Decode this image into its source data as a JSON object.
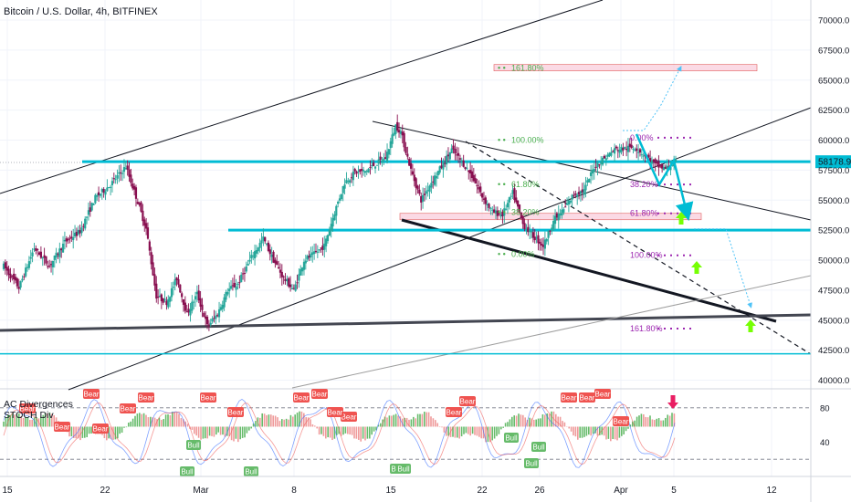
{
  "header": {
    "title": "Bitcoin / U.S. Dollar, 4h, BITFINEX"
  },
  "indicator": {
    "line1": "AC Divergences",
    "line2": "STOCH Div"
  },
  "colors": {
    "bull_candle": "#26a69a",
    "bear_candle": "#880e4f",
    "cyan": "#00bcd4",
    "pink_zone": "#f8bbd0",
    "arrow_green": "#76ff03",
    "arrow_red": "#e91e63",
    "fib_green": "#4caf50",
    "fib_purple": "#9c27b0",
    "ac_up": "#66bb6a",
    "ac_down": "#ef9a9a",
    "bear_label": "#ef5350",
    "bull_label": "#66bb6a"
  },
  "chart_data": {
    "type": "candlestick",
    "symbol": "BTCUSD",
    "timeframe": "4h",
    "price_axis": {
      "ticks": [
        "70000.0",
        "67500.0",
        "65000.0",
        "62500.0",
        "60000.0",
        "57500.0",
        "55000.0",
        "52500.0",
        "50000.0",
        "47500.0",
        "45000.0",
        "42500.0",
        "40000.0"
      ],
      "range": [
        39000,
        71500
      ]
    },
    "last_price": "58178.9",
    "time_axis": {
      "ticks": [
        "15",
        "22",
        "Mar",
        "8",
        "15",
        "22",
        "26",
        "Apr",
        "5",
        "12"
      ]
    },
    "price_path": [
      [
        0,
        49500
      ],
      [
        3,
        47700
      ],
      [
        6,
        51000
      ],
      [
        9,
        49500
      ],
      [
        12,
        51500
      ],
      [
        15,
        52400
      ],
      [
        18,
        55200
      ],
      [
        21,
        56300
      ],
      [
        24,
        57800
      ],
      [
        26,
        55300
      ],
      [
        28,
        52600
      ],
      [
        30,
        47000
      ],
      [
        32,
        46500
      ],
      [
        34,
        48500
      ],
      [
        36,
        45500
      ],
      [
        38,
        47200
      ],
      [
        40,
        44500
      ],
      [
        42,
        45500
      ],
      [
        44,
        47500
      ],
      [
        46,
        48000
      ],
      [
        49,
        50500
      ],
      [
        51,
        51800
      ],
      [
        53,
        50000
      ],
      [
        55,
        48500
      ],
      [
        57,
        47500
      ],
      [
        59,
        50000
      ],
      [
        61,
        50500
      ],
      [
        63,
        51200
      ],
      [
        65,
        54000
      ],
      [
        67,
        56500
      ],
      [
        69,
        57300
      ],
      [
        71,
        57400
      ],
      [
        73,
        58000
      ],
      [
        75,
        58500
      ],
      [
        77,
        61200
      ],
      [
        78,
        60700
      ],
      [
        80,
        57500
      ],
      [
        82,
        55000
      ],
      [
        84,
        56500
      ],
      [
        86,
        57800
      ],
      [
        88,
        59200
      ],
      [
        90,
        58200
      ],
      [
        92,
        57000
      ],
      [
        94,
        55300
      ],
      [
        96,
        54000
      ],
      [
        98,
        53800
      ],
      [
        100,
        55600
      ],
      [
        102,
        53000
      ],
      [
        104,
        52000
      ],
      [
        106,
        51200
      ],
      [
        108,
        53300
      ],
      [
        110,
        54200
      ],
      [
        112,
        55500
      ],
      [
        114,
        55800
      ],
      [
        116,
        57800
      ],
      [
        118,
        58500
      ],
      [
        120,
        59200
      ],
      [
        122,
        59300
      ],
      [
        124,
        59400
      ],
      [
        126,
        58700
      ],
      [
        128,
        57900
      ],
      [
        130,
        57600
      ],
      [
        132,
        58200
      ]
    ],
    "fib_left": [
      {
        "label": "161.80%",
        "price": 66000
      },
      {
        "label": "100.00%",
        "price": 60000
      },
      {
        "label": "61.80%",
        "price": 56300
      },
      {
        "label": "38.20%",
        "price": 54000
      },
      {
        "label": "0.00%",
        "price": 50500
      }
    ],
    "fib_right": [
      {
        "label": "0.00%",
        "price": 60200
      },
      {
        "label": "38.20%",
        "price": 56300
      },
      {
        "label": "61.80%",
        "price": 53900
      },
      {
        "label": "100.00%",
        "price": 50400
      },
      {
        "label": "161.80%",
        "price": 44300
      }
    ],
    "horizontal_levels": [
      {
        "name": "resistance",
        "price": 58200
      },
      {
        "name": "support",
        "price": 52500
      },
      {
        "name": "lower",
        "price": 42200
      }
    ],
    "indicator_axis": {
      "ticks": [
        "80",
        "40"
      ]
    },
    "signals": {
      "bear": 18,
      "bull": 8
    }
  }
}
